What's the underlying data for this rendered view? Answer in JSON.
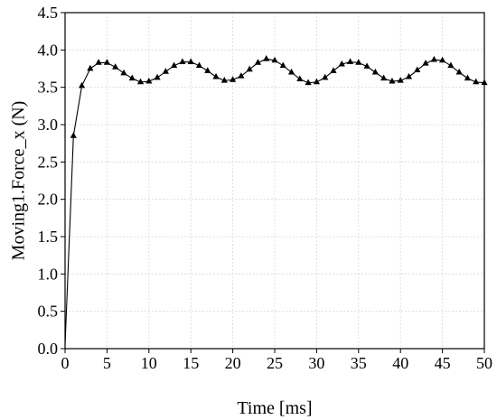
{
  "chart_data": {
    "type": "line",
    "xlabel": "Time [ms]",
    "ylabel": "Moving1.Force_x (N)",
    "xlim": [
      0,
      50
    ],
    "ylim": [
      0,
      4.5
    ],
    "xticks": [
      "0",
      "5",
      "10",
      "15",
      "20",
      "25",
      "30",
      "35",
      "40",
      "45",
      "50"
    ],
    "yticks": [
      "0.0",
      "0.5",
      "1.0",
      "1.5",
      "2.0",
      "2.5",
      "3.0",
      "3.5",
      "4.0",
      "4.5"
    ],
    "grid": true,
    "marker": "triangle",
    "series": [
      {
        "x": [
          0,
          1,
          2,
          3,
          4,
          5,
          6,
          7,
          8,
          9,
          10,
          11,
          12,
          13,
          14,
          15,
          16,
          17,
          18,
          19,
          20,
          21,
          22,
          23,
          24,
          25,
          26,
          27,
          28,
          29,
          30,
          31,
          32,
          33,
          34,
          35,
          36,
          37,
          38,
          39,
          40,
          41,
          42,
          43,
          44,
          45,
          46,
          47,
          48,
          49,
          50
        ],
        "y": [
          0.05,
          2.85,
          3.52,
          3.75,
          3.83,
          3.83,
          3.77,
          3.69,
          3.62,
          3.57,
          3.58,
          3.63,
          3.71,
          3.79,
          3.84,
          3.84,
          3.79,
          3.72,
          3.64,
          3.59,
          3.6,
          3.65,
          3.74,
          3.83,
          3.88,
          3.86,
          3.79,
          3.7,
          3.61,
          3.56,
          3.57,
          3.63,
          3.72,
          3.81,
          3.84,
          3.83,
          3.78,
          3.7,
          3.62,
          3.58,
          3.59,
          3.64,
          3.73,
          3.82,
          3.87,
          3.86,
          3.79,
          3.7,
          3.62,
          3.57,
          3.56
        ]
      }
    ]
  }
}
